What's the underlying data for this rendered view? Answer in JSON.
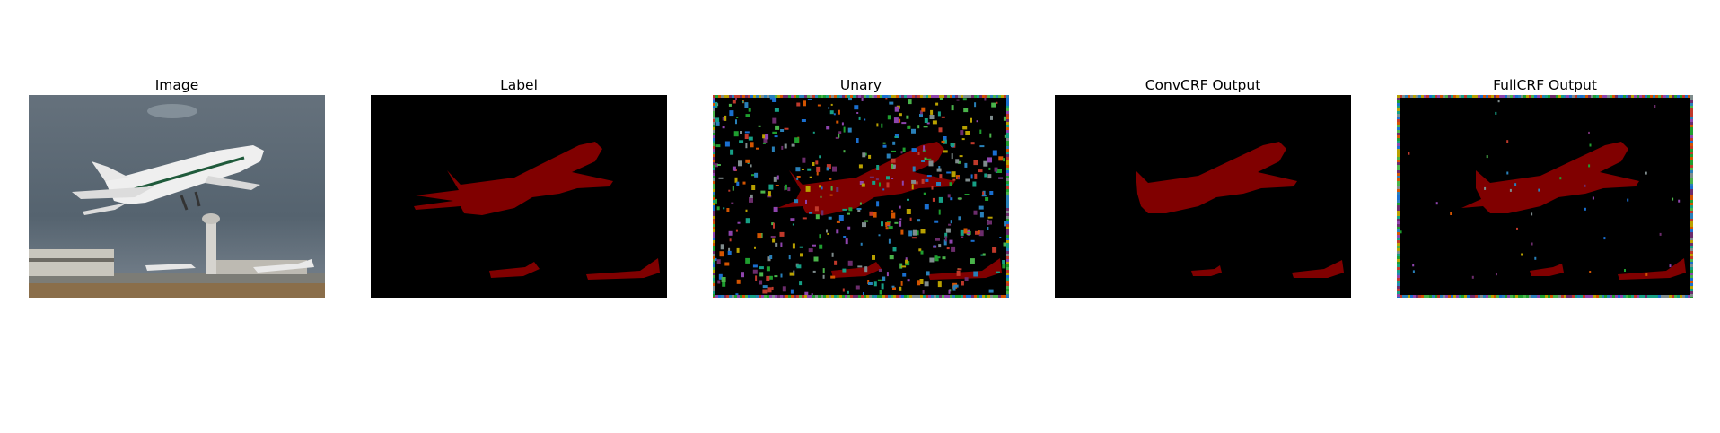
{
  "panels": [
    {
      "title": "Image"
    },
    {
      "title": "Label"
    },
    {
      "title": "Unary"
    },
    {
      "title": "ConvCRF Output"
    },
    {
      "title": "FullCRF Output"
    }
  ],
  "colors": {
    "background": "#ffffff",
    "mask_background": "#000000",
    "airplane_class": "#800000",
    "sky": "#5a6774",
    "ground": "#8a6e4a"
  }
}
